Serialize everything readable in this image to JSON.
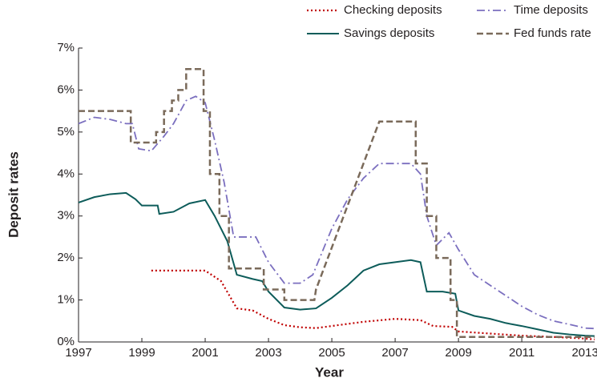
{
  "chart_data": {
    "type": "line",
    "xlabel": "Year",
    "ylabel": "Deposit rates",
    "xlim": [
      1997,
      2013.3
    ],
    "ylim": [
      0,
      7
    ],
    "xticks": [
      1997,
      1999,
      2001,
      2003,
      2005,
      2007,
      2009,
      2011,
      2013
    ],
    "yticks": [
      {
        "value": 0,
        "label": "0%"
      },
      {
        "value": 1,
        "label": "1%"
      },
      {
        "value": 2,
        "label": "2%"
      },
      {
        "value": 3,
        "label": "3%"
      },
      {
        "value": 4,
        "label": "4%"
      },
      {
        "value": 5,
        "label": "5%"
      },
      {
        "value": 6,
        "label": "6%"
      },
      {
        "value": 7,
        "label": "7%"
      }
    ],
    "legend": "top",
    "series": [
      {
        "name": "Checking  deposits",
        "color": "#c00000",
        "style": "dotted",
        "x": [
          1999.3,
          2000,
          2001,
          2001.5,
          2002,
          2002.5,
          2003,
          2003.5,
          2004,
          2004.5,
          2005,
          2006,
          2007,
          2007.8,
          2008.2,
          2008.8,
          2009,
          2010,
          2011,
          2012,
          2013,
          2013.3
        ],
        "values": [
          1.7,
          1.7,
          1.7,
          1.45,
          0.8,
          0.75,
          0.55,
          0.4,
          0.35,
          0.33,
          0.38,
          0.48,
          0.55,
          0.52,
          0.38,
          0.36,
          0.25,
          0.2,
          0.15,
          0.12,
          0.08,
          0.06
        ]
      },
      {
        "name": "Time deposits",
        "color": "#7b6fbf",
        "style": "dashdot",
        "x": [
          1997,
          1997.5,
          1998,
          1998.5,
          1998.7,
          1998.9,
          1999.3,
          1999.7,
          2000,
          2000.4,
          2000.7,
          2001,
          2001.3,
          2001.6,
          2001.9,
          2002.2,
          2002.6,
          2003,
          2003.5,
          2004,
          2004.4,
          2005,
          2005.5,
          2006,
          2006.5,
          2007,
          2007.5,
          2007.8,
          2008,
          2008.3,
          2008.7,
          2009,
          2009.5,
          2010,
          2010.5,
          2011,
          2011.5,
          2012,
          2012.5,
          2013,
          2013.3
        ],
        "values": [
          5.2,
          5.35,
          5.3,
          5.2,
          5.2,
          4.6,
          4.55,
          4.9,
          5.2,
          5.75,
          5.85,
          5.7,
          4.8,
          3.8,
          2.5,
          2.5,
          2.5,
          1.9,
          1.4,
          1.4,
          1.6,
          2.7,
          3.4,
          3.9,
          4.25,
          4.25,
          4.25,
          4.0,
          3.0,
          2.3,
          2.6,
          2.2,
          1.6,
          1.35,
          1.1,
          0.85,
          0.65,
          0.5,
          0.42,
          0.33,
          0.32
        ]
      },
      {
        "name": "Savings deposits",
        "color": "#0d5c5a",
        "style": "solid",
        "x": [
          1997,
          1997.5,
          1998,
          1998.5,
          1998.8,
          1999,
          1999.5,
          1999.55,
          2000,
          2000.5,
          2001,
          2001.3,
          2001.7,
          2002,
          2002.5,
          2002.8,
          2003,
          2003.5,
          2004,
          2004.5,
          2005,
          2005.5,
          2006,
          2006.5,
          2007,
          2007.5,
          2007.8,
          2008,
          2008.5,
          2008.9,
          2009,
          2009.5,
          2010,
          2010.5,
          2011,
          2011.5,
          2012,
          2012.5,
          2013,
          2013.3
        ],
        "values": [
          3.32,
          3.45,
          3.52,
          3.55,
          3.4,
          3.25,
          3.25,
          3.05,
          3.1,
          3.3,
          3.38,
          3.0,
          2.4,
          1.6,
          1.5,
          1.45,
          1.2,
          0.82,
          0.77,
          0.8,
          1.05,
          1.35,
          1.7,
          1.85,
          1.9,
          1.95,
          1.9,
          1.2,
          1.2,
          1.15,
          0.75,
          0.62,
          0.55,
          0.45,
          0.38,
          0.3,
          0.22,
          0.18,
          0.15,
          0.14
        ]
      },
      {
        "name": "Fed funds rate",
        "color": "#7a6a5a",
        "style": "dashed",
        "x": [
          1997,
          1998.65,
          1998.65,
          1999.45,
          1999.45,
          1999.7,
          1999.7,
          1999.95,
          1999.95,
          2000.15,
          2000.15,
          2000.4,
          2000.4,
          2000.95,
          2000.95,
          2001.15,
          2001.15,
          2001.45,
          2001.45,
          2001.75,
          2001.75,
          2002.85,
          2002.85,
          2003.5,
          2003.5,
          2004.45,
          2004.5,
          2005,
          2005.5,
          2006,
          2006.5,
          2007.65,
          2007.65,
          2008.0,
          2008.0,
          2008.3,
          2008.3,
          2008.75,
          2008.75,
          2008.95,
          2008.95,
          2013.3
        ],
        "values": [
          5.5,
          5.5,
          4.75,
          4.75,
          5.0,
          5.0,
          5.5,
          5.5,
          5.75,
          5.75,
          6.0,
          6.0,
          6.5,
          6.5,
          5.5,
          5.5,
          4.0,
          4.0,
          3.0,
          3.0,
          1.75,
          1.75,
          1.25,
          1.25,
          1.0,
          1.0,
          1.25,
          2.25,
          3.25,
          4.25,
          5.25,
          5.25,
          4.25,
          4.25,
          3.0,
          3.0,
          2.0,
          2.0,
          1.0,
          1.0,
          0.12,
          0.12
        ]
      }
    ]
  }
}
